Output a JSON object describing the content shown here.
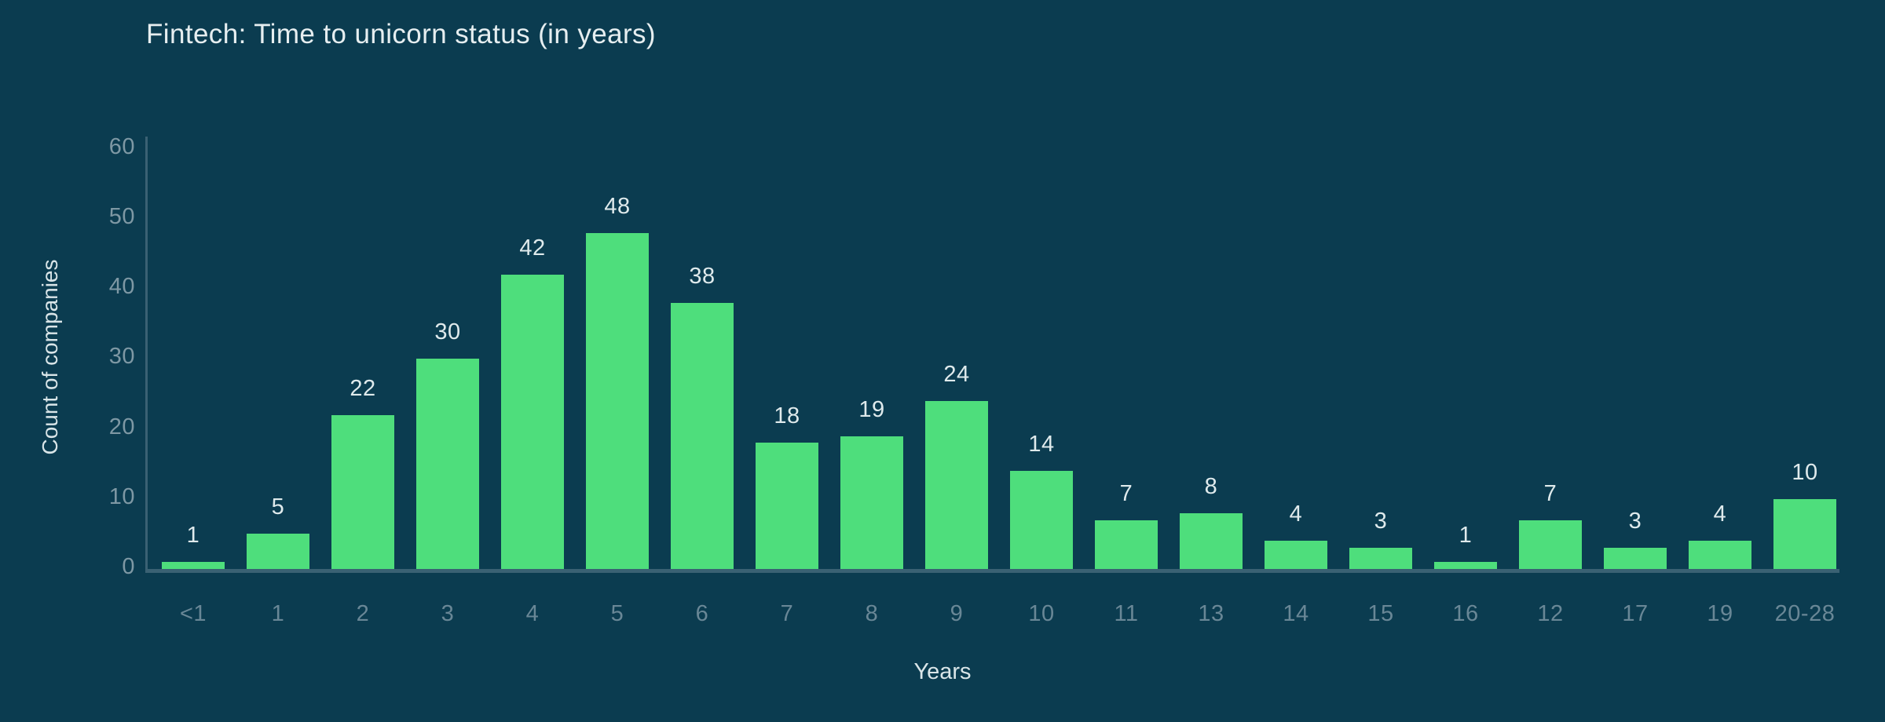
{
  "page": {
    "background": "#0b3c50"
  },
  "chart_data": {
    "type": "bar",
    "title": "Fintech: Time to unicorn status (in years)",
    "xlabel": "Years",
    "ylabel": "Count of companies",
    "categories": [
      "<1",
      "1",
      "2",
      "3",
      "4",
      "5",
      "6",
      "7",
      "8",
      "9",
      "10",
      "11",
      "13",
      "14",
      "15",
      "16",
      "12",
      "17",
      "19",
      "20-28"
    ],
    "values": [
      1,
      5,
      22,
      30,
      42,
      48,
      38,
      18,
      19,
      24,
      14,
      7,
      8,
      4,
      3,
      1,
      7,
      3,
      4,
      10
    ],
    "yticks": [
      0,
      10,
      20,
      30,
      40,
      50,
      60
    ],
    "ylim": [
      0,
      60
    ],
    "grid": false,
    "legend": false,
    "colors": {
      "bar": "#4ede7c",
      "title": "#e6eef0",
      "value_label": "#dfeaec",
      "x_tick_label": "#698796",
      "y_tick_label": "#7e98a4",
      "axis_title": "#d9e5e8",
      "axis_line": "#3a6173"
    }
  }
}
